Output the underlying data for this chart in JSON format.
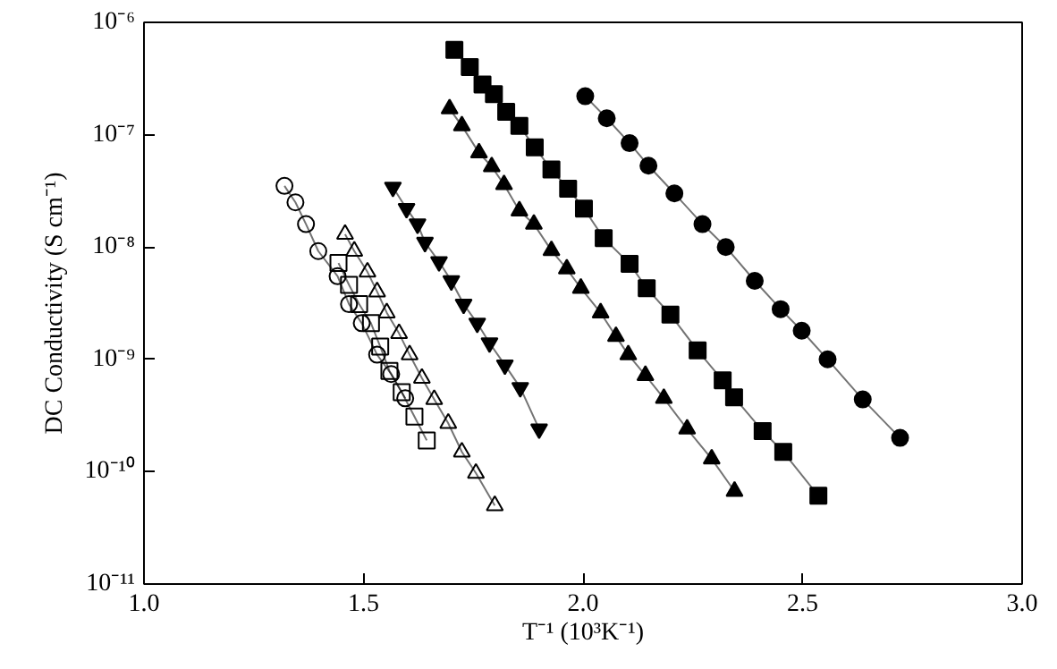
{
  "chart_data": {
    "type": "line",
    "xlabel": "T⁻¹ (10³K⁻¹)",
    "ylabel": "DC Conductivity (S cm⁻¹)",
    "log": "y",
    "grid": false,
    "line_style": "solid",
    "xlim": [
      1.0,
      3.0
    ],
    "xticks": [
      {
        "value": 1.0,
        "label": "1.0"
      },
      {
        "value": 1.5,
        "label": "1.5"
      },
      {
        "value": 2.0,
        "label": "2.0"
      },
      {
        "value": 2.5,
        "label": "2.5"
      },
      {
        "value": 3.0,
        "label": "3.0"
      }
    ],
    "ylim": [
      1e-11,
      1e-06
    ],
    "yticks": [
      {
        "value": 1e-11,
        "label": "10⁻¹¹"
      },
      {
        "value": 1e-10,
        "label": "10⁻¹⁰"
      },
      {
        "value": 1e-09,
        "label": "10⁻⁹"
      },
      {
        "value": 1e-08,
        "label": "10⁻⁸"
      },
      {
        "value": 1e-07,
        "label": "10⁻⁷"
      },
      {
        "value": 1e-06,
        "label": "10⁻⁶"
      }
    ],
    "series": [
      {
        "color": "#000000",
        "marker": "circle",
        "x": [
          2.005,
          2.054,
          2.106,
          2.149,
          2.208,
          2.272,
          2.325,
          2.391,
          2.45,
          2.498,
          2.557,
          2.637,
          2.722
        ],
        "values": [
          2.2e-07,
          1.4e-07,
          8.4e-08,
          5.3e-08,
          3e-08,
          1.6e-08,
          1e-08,
          5e-09,
          2.8e-09,
          1.8e-09,
          1e-09,
          4.4e-10,
          2e-10
        ]
      },
      {
        "color": "#000000",
        "marker": "square",
        "x": [
          1.707,
          1.742,
          1.771,
          1.797,
          1.825,
          1.855,
          1.89,
          1.928,
          1.966,
          2.002,
          2.047,
          2.106,
          2.145,
          2.199,
          2.261,
          2.318,
          2.344,
          2.409,
          2.456,
          2.536
        ],
        "values": [
          5.7e-07,
          4e-07,
          2.8e-07,
          2.3e-07,
          1.6e-07,
          1.2e-07,
          7.7e-08,
          4.9e-08,
          3.3e-08,
          2.2e-08,
          1.2e-08,
          7.1e-09,
          4.3e-09,
          2.5e-09,
          1.2e-09,
          6.5e-10,
          4.6e-10,
          2.3e-10,
          1.5e-10,
          6.1e-11
        ]
      },
      {
        "color": "#000000",
        "marker": "triangle",
        "x": [
          1.696,
          1.724,
          1.763,
          1.792,
          1.82,
          1.855,
          1.888,
          1.928,
          1.963,
          1.995,
          2.04,
          2.075,
          2.103,
          2.142,
          2.184,
          2.237,
          2.293,
          2.345
        ],
        "values": [
          1.7e-07,
          1.2e-07,
          6.9e-08,
          5.2e-08,
          3.6e-08,
          2.1e-08,
          1.6e-08,
          9.3e-09,
          6.4e-09,
          4.3e-09,
          2.6e-09,
          1.6e-09,
          1.1e-09,
          7.2e-10,
          4.5e-10,
          2.4e-10,
          1.3e-10,
          6.7e-11
        ]
      },
      {
        "color": "#000000",
        "marker": "triangle_down",
        "x": [
          1.567,
          1.598,
          1.623,
          1.64,
          1.672,
          1.7,
          1.728,
          1.759,
          1.787,
          1.822,
          1.857,
          1.9
        ],
        "values": [
          3.4e-08,
          2.2e-08,
          1.6e-08,
          1.1e-08,
          7.4e-09,
          5e-09,
          3.1e-09,
          2.1e-09,
          1.4e-09,
          8.9e-10,
          5.6e-10,
          2.4e-10
        ]
      },
      {
        "color": "#000000",
        "marker": "circle_open",
        "x": [
          1.32,
          1.345,
          1.369,
          1.397,
          1.441,
          1.467,
          1.496,
          1.531,
          1.563,
          1.595
        ],
        "values": [
          3.5e-08,
          2.5e-08,
          1.6e-08,
          9.2e-09,
          5.5e-09,
          3.1e-09,
          2.1e-09,
          1.1e-09,
          7.4e-10,
          4.5e-10
        ]
      },
      {
        "color": "#000000",
        "marker": "square_open",
        "x": [
          1.443,
          1.467,
          1.49,
          1.517,
          1.538,
          1.559,
          1.587,
          1.616,
          1.644
        ],
        "values": [
          7.2e-09,
          4.6e-09,
          3.1e-09,
          2.1e-09,
          1.3e-09,
          7.9e-10,
          5.1e-10,
          3.1e-10,
          1.9e-10
        ]
      },
      {
        "color": "#000000",
        "marker": "triangle_open",
        "x": [
          1.458,
          1.479,
          1.509,
          1.531,
          1.553,
          1.581,
          1.605,
          1.633,
          1.661,
          1.693,
          1.724,
          1.756,
          1.799
        ],
        "values": [
          1.3e-08,
          9.2e-09,
          6e-09,
          4e-09,
          2.6e-09,
          1.7e-09,
          1.1e-09,
          6.8e-10,
          4.4e-10,
          2.7e-10,
          1.5e-10,
          9.7e-11,
          5e-11
        ]
      }
    ]
  }
}
